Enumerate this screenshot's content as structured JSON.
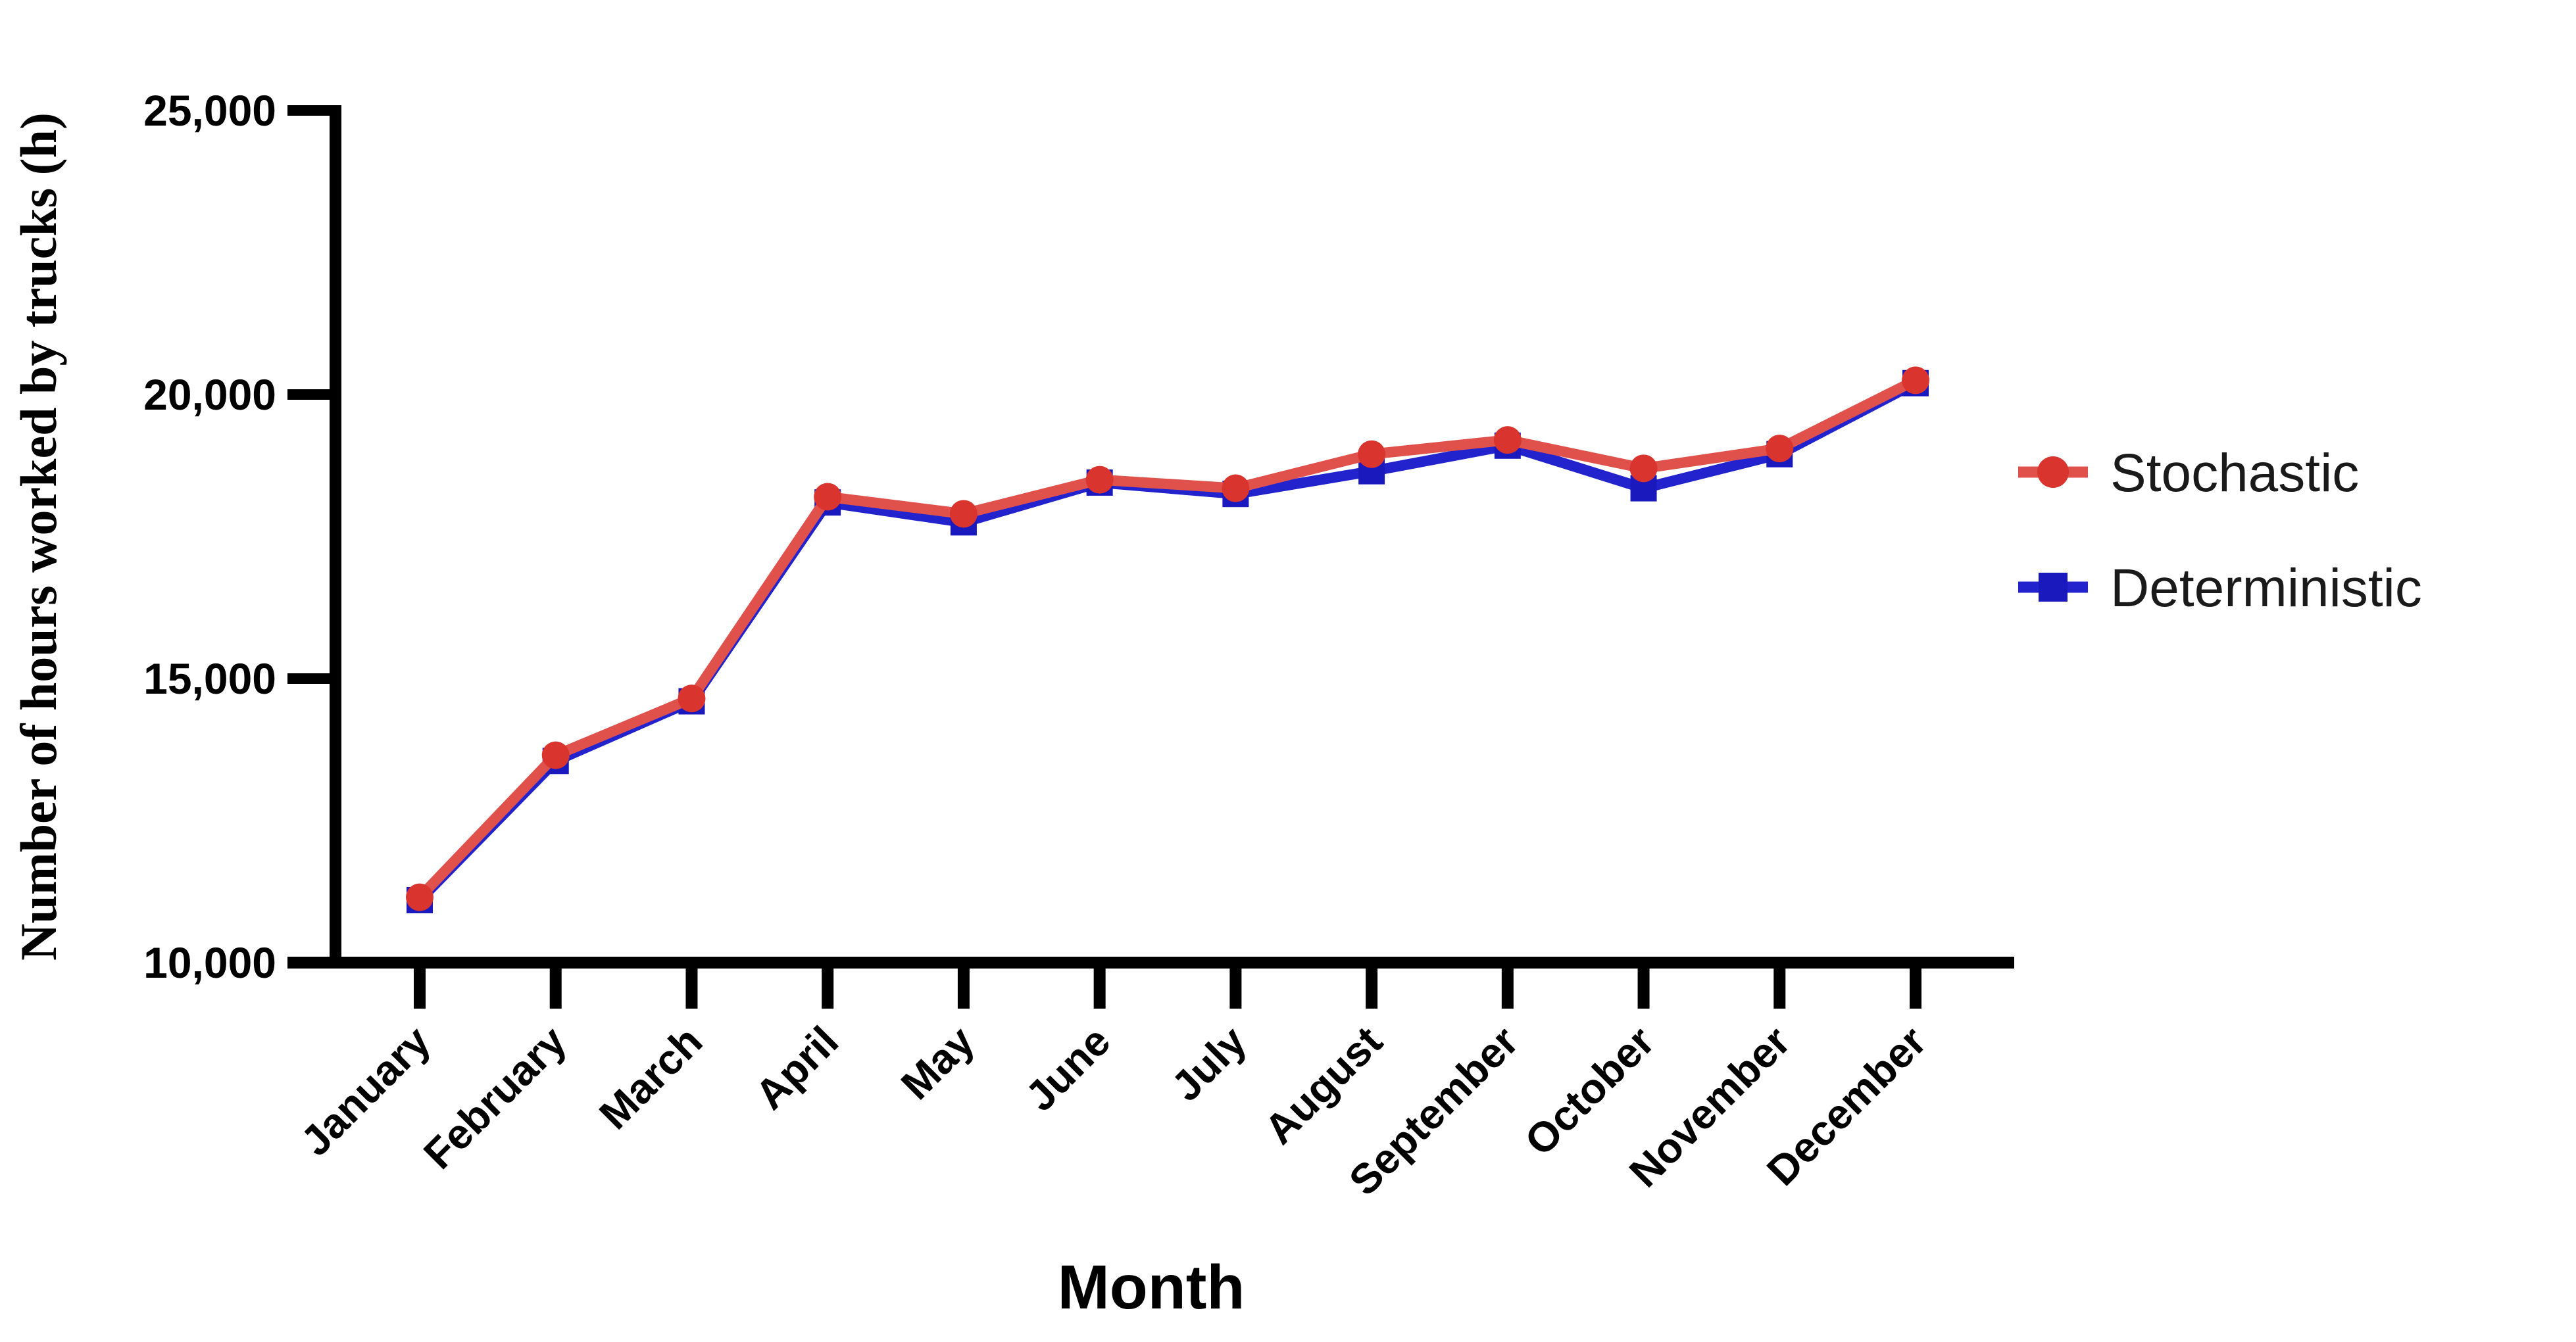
{
  "chart_data": {
    "type": "line",
    "title": "",
    "xlabel": "Month",
    "ylabel": "Number of hours worked by trucks (h)",
    "categories": [
      "January",
      "February",
      "March",
      "April",
      "May",
      "June",
      "July",
      "August",
      "September",
      "October",
      "November",
      "December"
    ],
    "ylim": [
      10000,
      25000
    ],
    "ytick_step": 5000,
    "ytick_labels": [
      "10,000",
      "15,000",
      "20,000",
      "25,000"
    ],
    "grid": false,
    "legend_position": "right",
    "series": [
      {
        "name": "Stochastic",
        "marker": "circle",
        "color": "#E0514C",
        "marker_color": "#D9342E",
        "values": [
          11150,
          13650,
          14650,
          18200,
          17900,
          18500,
          18350,
          18950,
          19200,
          18700,
          19050,
          20250
        ]
      },
      {
        "name": "Deterministic",
        "marker": "square",
        "color": "#2323CE",
        "marker_color": "#1919BE",
        "values": [
          11100,
          13550,
          14600,
          18100,
          17750,
          18450,
          18250,
          18650,
          19100,
          18350,
          18950,
          20200
        ]
      }
    ],
    "axis_color": "#000000"
  }
}
